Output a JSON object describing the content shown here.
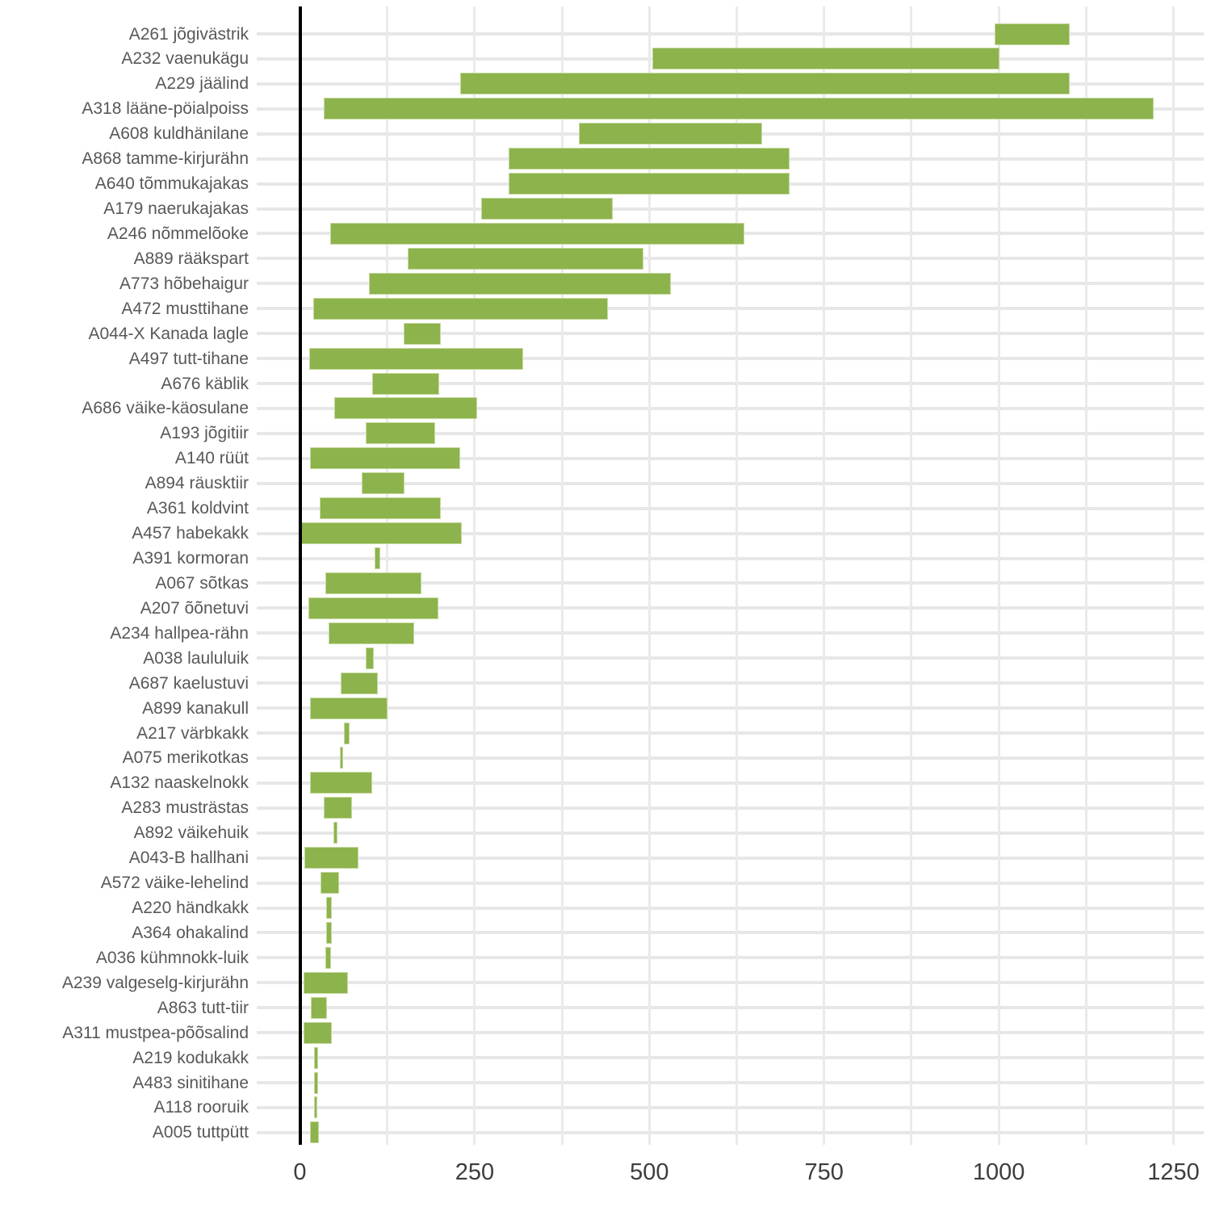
{
  "chart_data": {
    "type": "bar",
    "subtype": "horizontal-range-bars",
    "title": "",
    "xlabel": "",
    "ylabel": "",
    "xlim": [
      0,
      1250
    ],
    "x_major_ticks": [
      0,
      250,
      500,
      750,
      1000,
      1250
    ],
    "x_minor_grid_step": 125,
    "grid": true,
    "legend": "none",
    "bar_color": "#8db34c",
    "categories": [
      "A261 jõgivästrik",
      "A232 vaenukägu",
      "A229 jäälind",
      "A318 lääne-pöialpoiss",
      "A608 kuldhänilane",
      "A868 tamme-kirjurähn",
      "A640 tõmmukajakas",
      "A179 naerukajakas",
      "A246 nõmmelõoke",
      "A889 rääkspart",
      "A773 hõbehaigur",
      "A472 musttihane",
      "A044-X Kanada lagle",
      "A497 tutt-tihane",
      "A676 käblik",
      "A686 väike-käosulane",
      "A193 jõgitiir",
      "A140 rüüt",
      "A894 räusktiir",
      "A361 koldvint",
      "A457 habekakk",
      "A391 kormoran",
      "A067 sõtkas",
      "A207 õõnetuvi",
      "A234 hallpea-rähn",
      "A038 laululuik",
      "A687 kaelustuvi",
      "A899 kanakull",
      "A217 värbkakk",
      "A075 merikotkas",
      "A132 naaskelnokk",
      "A283 musträstas",
      "A892 väikehuik",
      "A043-B hallhani",
      "A572 väike-lehelind",
      "A220 händkakk",
      "A364 ohakalind",
      "A036 kühmnokk-luik",
      "A239 valgeselg-kirjurähn",
      "A863 tutt-tiir",
      "A311 mustpea-põõsalind",
      "A219 kodukakk",
      "A483 sinitihane",
      "A118 rooruik",
      "A005 tuttpütt"
    ],
    "series": [
      {
        "name": "range",
        "values": [
          [
            995,
            1100
          ],
          [
            505,
            1000
          ],
          [
            230,
            1100
          ],
          [
            35,
            1220
          ],
          [
            400,
            660
          ],
          [
            300,
            700
          ],
          [
            300,
            700
          ],
          [
            260,
            447
          ],
          [
            45,
            635
          ],
          [
            155,
            490
          ],
          [
            100,
            530
          ],
          [
            20,
            440
          ],
          [
            150,
            200
          ],
          [
            15,
            318
          ],
          [
            105,
            198
          ],
          [
            50,
            252
          ],
          [
            95,
            192
          ],
          [
            16,
            228
          ],
          [
            90,
            148
          ],
          [
            30,
            200
          ],
          [
            0,
            230
          ],
          [
            108,
            114
          ],
          [
            37,
            173
          ],
          [
            13,
            197
          ],
          [
            42,
            162
          ],
          [
            95,
            105
          ],
          [
            60,
            110
          ],
          [
            16,
            124
          ],
          [
            64,
            70
          ],
          [
            58,
            60
          ],
          [
            16,
            102
          ],
          [
            35,
            73
          ],
          [
            49,
            53
          ],
          [
            8,
            83
          ],
          [
            31,
            55
          ],
          [
            39,
            45
          ],
          [
            39,
            44
          ],
          [
            38,
            43
          ],
          [
            6,
            68
          ],
          [
            17,
            37
          ],
          [
            6,
            45
          ],
          [
            21,
            25
          ],
          [
            21,
            25
          ],
          [
            21,
            24
          ],
          [
            16,
            26
          ]
        ]
      }
    ]
  }
}
